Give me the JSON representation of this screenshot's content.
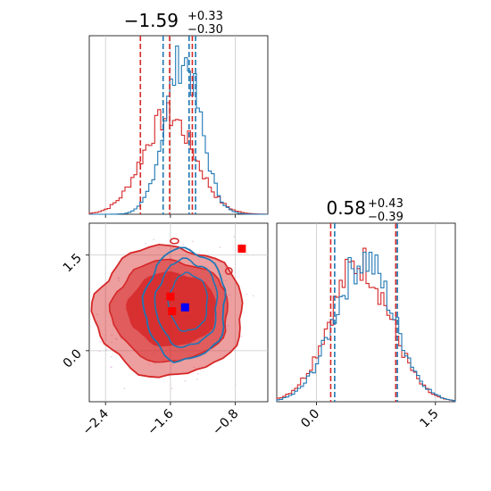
{
  "chart_data": {
    "type": "corner",
    "parameters": [
      {
        "title_main": "−1.59",
        "title_plus": "+0.33",
        "title_minus": "−0.30"
      },
      {
        "title_main": "0.58",
        "title_plus": "+0.43",
        "title_minus": "−0.39"
      }
    ],
    "colors": {
      "red": "#d62728",
      "blue": "#1f77b4",
      "marker_red": "#ff0000",
      "marker_blue": "#0000ff",
      "grid": "#c8c8c8"
    },
    "x_range": [
      -2.6,
      -0.4
    ],
    "y_range": [
      -0.8,
      2.0
    ],
    "p2_range": [
      -0.5,
      1.75
    ],
    "x_ticks": {
      "values": [
        -2.4,
        -1.6,
        -0.8
      ],
      "labels": [
        "−2.4",
        "−1.6",
        "−0.8"
      ]
    },
    "y_ticks": {
      "values": [
        0.0,
        1.5
      ],
      "labels": [
        "0.0",
        "1.5"
      ]
    },
    "p2_ticks": {
      "values": [
        0.0,
        1.5
      ],
      "labels": [
        "0.0",
        "1.5"
      ]
    },
    "quantile_lines_p1": {
      "red": [
        -1.97,
        -1.61,
        -1.33
      ],
      "blue": [
        -1.69,
        -1.37,
        -1.29
      ]
    },
    "quantile_lines_p2": {
      "red": [
        0.18,
        1.0
      ],
      "blue": [
        0.23,
        1.02
      ]
    },
    "hist_p1": {
      "red": {
        "center": -1.62,
        "sigma": 0.32,
        "peak_frac": 0.55,
        "bins": 60
      },
      "blue": {
        "center": -1.45,
        "sigma": 0.22,
        "peak_frac": 0.87,
        "bins": 60
      }
    },
    "hist_p2": {
      "red": {
        "center": 0.55,
        "sigma": 0.38,
        "peak_frac": 0.78,
        "bins": 60
      },
      "blue": {
        "center": 0.6,
        "sigma": 0.37,
        "peak_frac": 0.8,
        "bins": 60
      }
    },
    "markers": [
      {
        "x": -1.6,
        "y": 0.85,
        "color": "red"
      },
      {
        "x": -1.58,
        "y": 0.62,
        "color": "red"
      },
      {
        "x": -0.72,
        "y": 1.6,
        "color": "red"
      },
      {
        "x": -1.42,
        "y": 0.68,
        "color": "blue"
      }
    ]
  }
}
